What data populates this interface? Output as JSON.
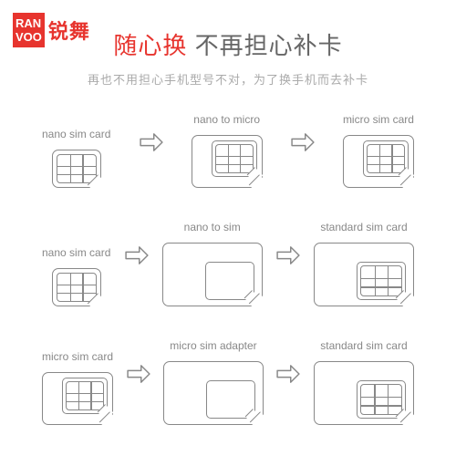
{
  "brand": {
    "line1": "RAN",
    "line2": "VOO",
    "cn": "锐舞",
    "accent": "#e7342e"
  },
  "headline": {
    "accent": "随心换",
    "rest": " 不再担心补卡"
  },
  "subtitle": "再也不用担心手机型号不对，为了换手机而去补卡",
  "rows": [
    {
      "a": {
        "label": "nano sim card",
        "card": "nano"
      },
      "b": {
        "label": "nano to micro",
        "card": "micro-chip"
      },
      "c": {
        "label": "micro sim card",
        "card": "micro-chip"
      }
    },
    {
      "a": {
        "label": "nano sim card",
        "card": "nano"
      },
      "b": {
        "label": "nano to sim",
        "card": "std"
      },
      "c": {
        "label": "standard sim card",
        "card": "std-chip"
      }
    },
    {
      "a": {
        "label": "micro sim card",
        "card": "micro-chip"
      },
      "b": {
        "label": "micro sim adapter",
        "card": "std"
      },
      "c": {
        "label": "standard sim card",
        "card": "std-chip"
      }
    }
  ],
  "colors": {
    "line": "#888888",
    "text_muted": "#aaaaaa"
  }
}
